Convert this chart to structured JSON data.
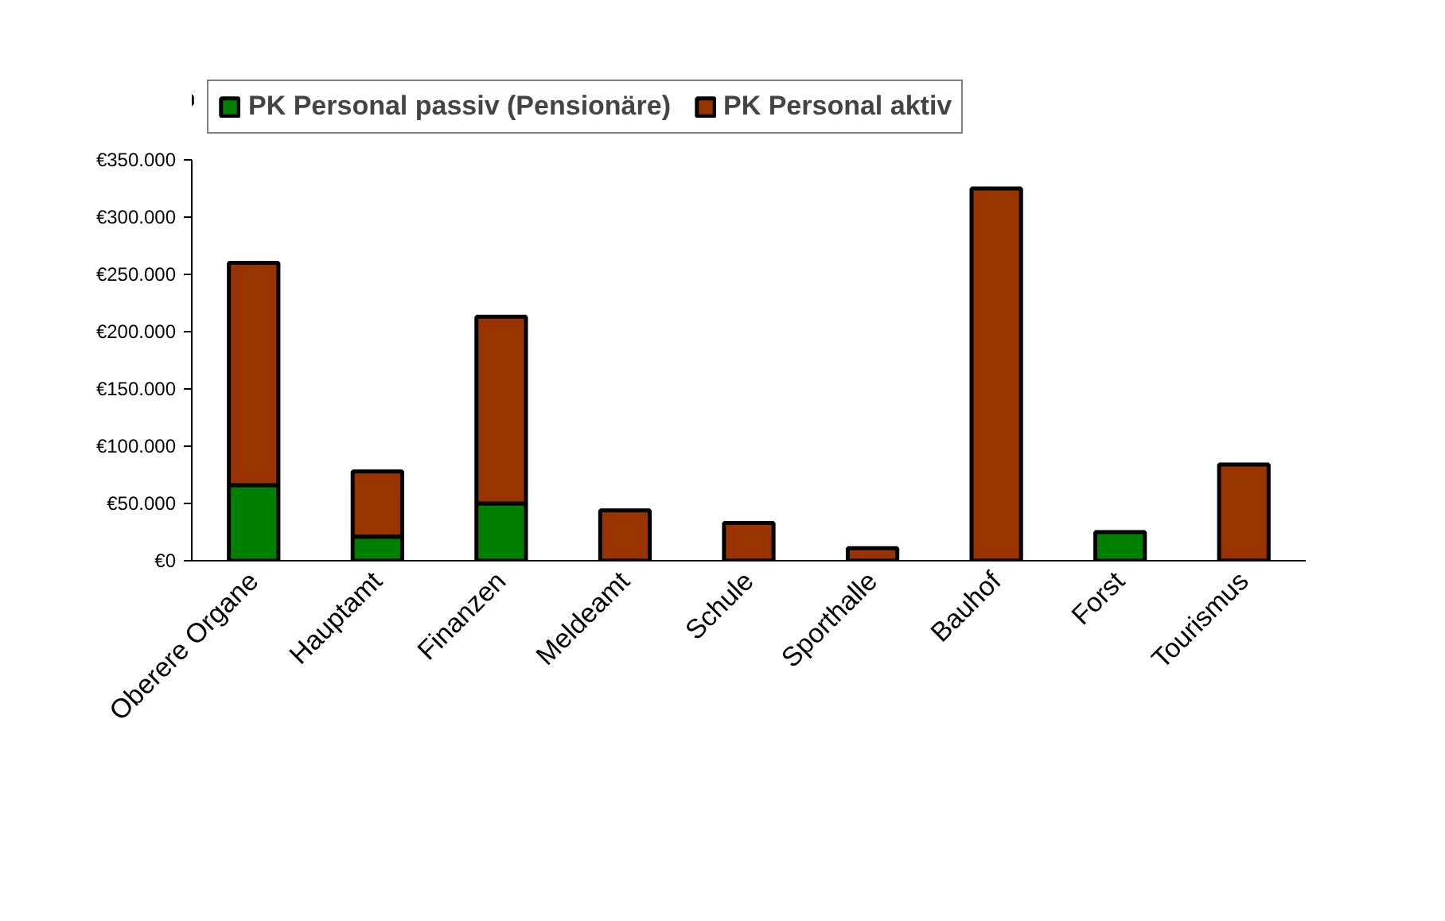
{
  "chart_data": {
    "type": "bar",
    "stacked": true,
    "categories": [
      "Oberere Organe",
      "Hauptamt",
      "Finanzen",
      "Meldeamt",
      "Schule",
      "Sporthalle",
      "Bauhof",
      "Forst",
      "Tourismus"
    ],
    "series": [
      {
        "name": "PK Personal passiv (Pensionäre)",
        "color": "#008000",
        "values": [
          66000,
          21000,
          50000,
          0,
          0,
          0,
          0,
          25000,
          0
        ]
      },
      {
        "name": "PK Personal aktiv",
        "color": "#993300",
        "values": [
          194000,
          57000,
          163000,
          44000,
          33000,
          11000,
          325000,
          0,
          84000
        ]
      }
    ],
    "ylim": [
      0,
      350000
    ],
    "yticks": [
      {
        "value": 0,
        "label": "€0"
      },
      {
        "value": 50000,
        "label": "€50.000"
      },
      {
        "value": 100000,
        "label": "€100.000"
      },
      {
        "value": 150000,
        "label": "€150.000"
      },
      {
        "value": 200000,
        "label": "€200.000"
      },
      {
        "value": 250000,
        "label": "€250.000"
      },
      {
        "value": 300000,
        "label": "€300.000"
      },
      {
        "value": 350000,
        "label": "€350.000"
      }
    ],
    "grid": false,
    "legend": "top"
  }
}
